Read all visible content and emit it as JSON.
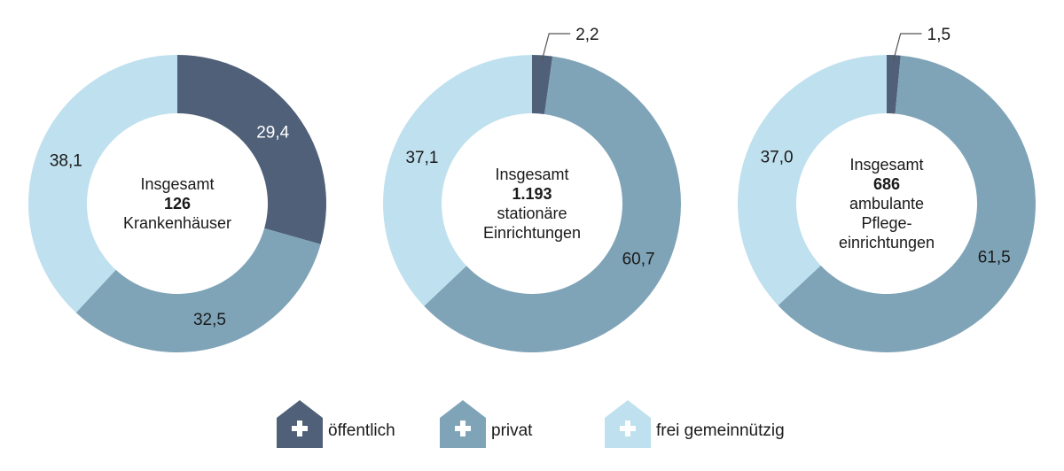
{
  "chart_data": [
    {
      "type": "pie",
      "center_lines": [
        "Insgesamt",
        "126",
        "Krankenhäuser"
      ],
      "center_bold_index": 1,
      "slices": [
        {
          "category": "öffentlich",
          "value": 29.4,
          "label": "29,4"
        },
        {
          "category": "privat",
          "value": 32.5,
          "label": "32,5"
        },
        {
          "category": "frei gemeinnützig",
          "value": 38.1,
          "label": "38,1"
        }
      ]
    },
    {
      "type": "pie",
      "center_lines": [
        "Insgesamt",
        "1.193",
        "stationäre",
        "Einrichtungen"
      ],
      "center_bold_index": 1,
      "slices": [
        {
          "category": "öffentlich",
          "value": 2.2,
          "label": "2,2"
        },
        {
          "category": "privat",
          "value": 60.7,
          "label": "60,7"
        },
        {
          "category": "frei gemeinnützig",
          "value": 37.1,
          "label": "37,1"
        }
      ]
    },
    {
      "type": "pie",
      "center_lines": [
        "Insgesamt",
        "686",
        "ambulante",
        "Pflege-",
        "einrichtungen"
      ],
      "center_bold_index": 1,
      "slices": [
        {
          "category": "öffentlich",
          "value": 1.5,
          "label": "1,5"
        },
        {
          "category": "privat",
          "value": 61.5,
          "label": "61,5"
        },
        {
          "category": "frei gemeinnützig",
          "value": 37.0,
          "label": "37,0"
        }
      ]
    }
  ],
  "legend": {
    "placement": "bottom",
    "items": [
      {
        "label": "öffentlich",
        "color": "#4f6078"
      },
      {
        "label": "privat",
        "color": "#7fa4b7"
      },
      {
        "label": "frei gemeinnützig",
        "color": "#bfe0ee"
      }
    ]
  },
  "colors": {
    "öffentlich": "#4f6078",
    "privat": "#7fa4b7",
    "frei gemeinnützig": "#bfe0ee",
    "leader": "#555555"
  }
}
